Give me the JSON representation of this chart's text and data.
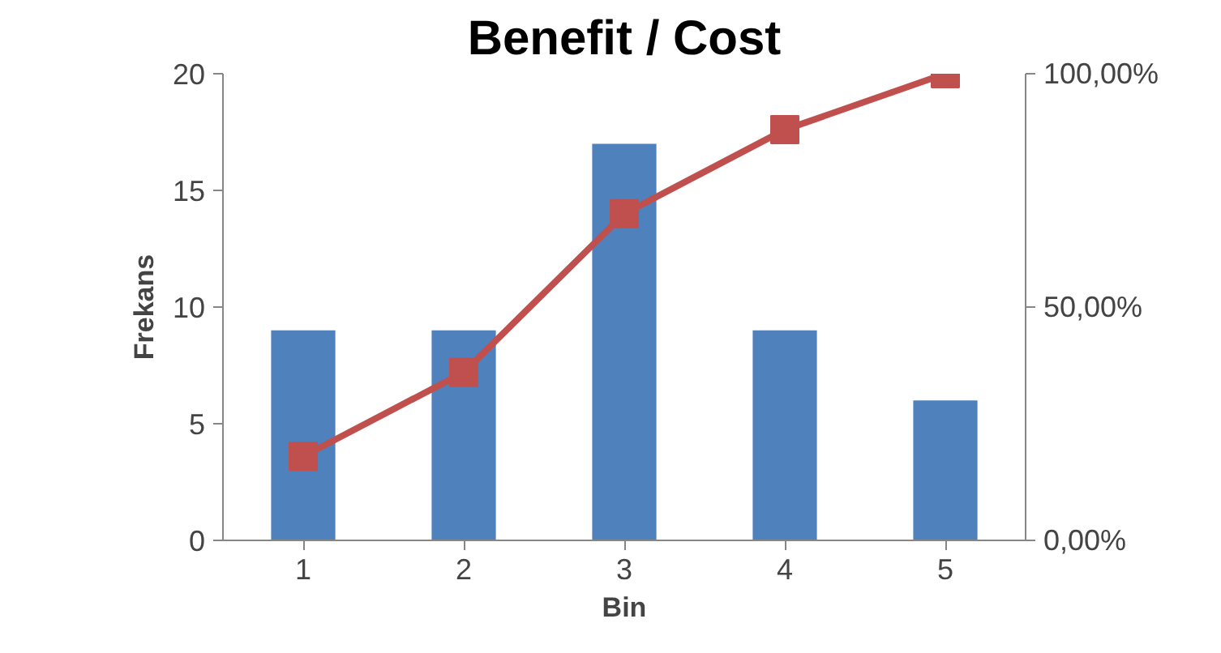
{
  "chart_data": {
    "type": "bar",
    "title": "Benefit / Cost",
    "xlabel": "Bin",
    "ylabel": "Frekans",
    "categories": [
      "1",
      "2",
      "3",
      "4",
      "5"
    ],
    "series": [
      {
        "color": "#4f81bd",
        "values": [
          9,
          9,
          17,
          9,
          6
        ]
      },
      {
        "type": "line",
        "axis": "y2",
        "color": "#c0504d",
        "marker": "square",
        "values": [
          18,
          36,
          70,
          88,
          100
        ]
      }
    ],
    "ylim": [
      0,
      20
    ],
    "yticks": [
      0,
      5,
      10,
      15,
      20
    ],
    "y2lim": [
      0,
      100
    ],
    "y2ticks": [
      {
        "value": 0,
        "label": "0,00%"
      },
      {
        "value": 50,
        "label": "50,00%"
      },
      {
        "value": 100,
        "label": "100,00%"
      }
    ]
  }
}
